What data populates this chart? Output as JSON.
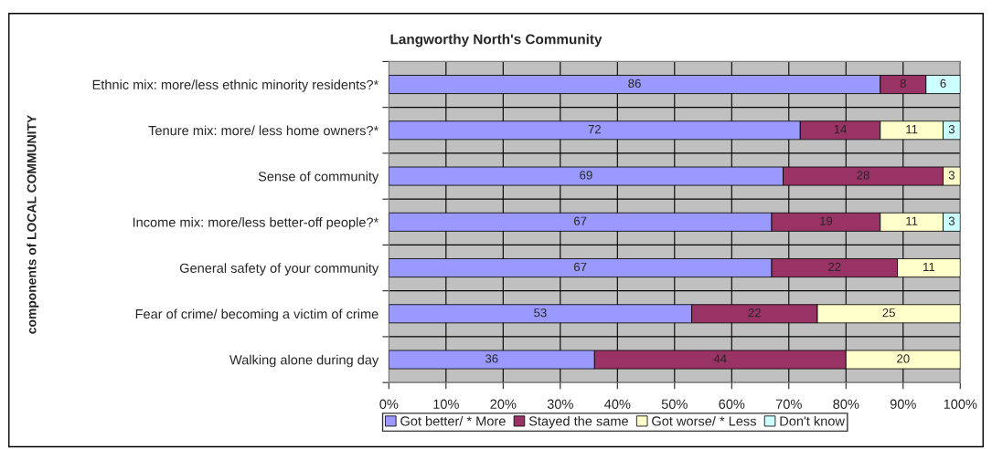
{
  "chart_data": {
    "type": "bar",
    "orientation": "horizontal",
    "stacked": true,
    "title": "Langworthy North's Community",
    "ylabel": "components of LOCAL COMMUNITY",
    "categories": [
      "Ethnic mix: more/less ethnic minority residents?*",
      "Tenure mix: more/ less home owners?*",
      "Sense of community",
      "Income mix: more/less better-off people?*",
      "General safety of your community",
      "Fear of crime/ becoming a victim of crime",
      "Walking alone during day"
    ],
    "series": [
      {
        "name": "Got better/ * More",
        "color": "#9999ff",
        "values": [
          86,
          72,
          69,
          67,
          67,
          53,
          36
        ]
      },
      {
        "name": "Stayed the same",
        "color": "#993366",
        "values": [
          8,
          14,
          28,
          19,
          22,
          22,
          44
        ]
      },
      {
        "name": "Got worse/ * Less",
        "color": "#ffffcc",
        "values": [
          null,
          11,
          3,
          11,
          11,
          25,
          20
        ]
      },
      {
        "name": "Don't know",
        "color": "#ccffff",
        "values": [
          6,
          3,
          null,
          3,
          null,
          null,
          null
        ]
      }
    ],
    "xlim": [
      0,
      100
    ],
    "xticks": [
      {
        "value": 0,
        "label": "0%"
      },
      {
        "value": 10,
        "label": "10%"
      },
      {
        "value": 20,
        "label": "20%"
      },
      {
        "value": 30,
        "label": "30%"
      },
      {
        "value": 40,
        "label": "40%"
      },
      {
        "value": 50,
        "label": "50%"
      },
      {
        "value": 60,
        "label": "60%"
      },
      {
        "value": 70,
        "label": "70%"
      },
      {
        "value": 80,
        "label": "80%"
      },
      {
        "value": 90,
        "label": "90%"
      },
      {
        "value": 100,
        "label": "100%"
      }
    ],
    "grid": true,
    "legend": "bottom",
    "data_labels": true
  }
}
